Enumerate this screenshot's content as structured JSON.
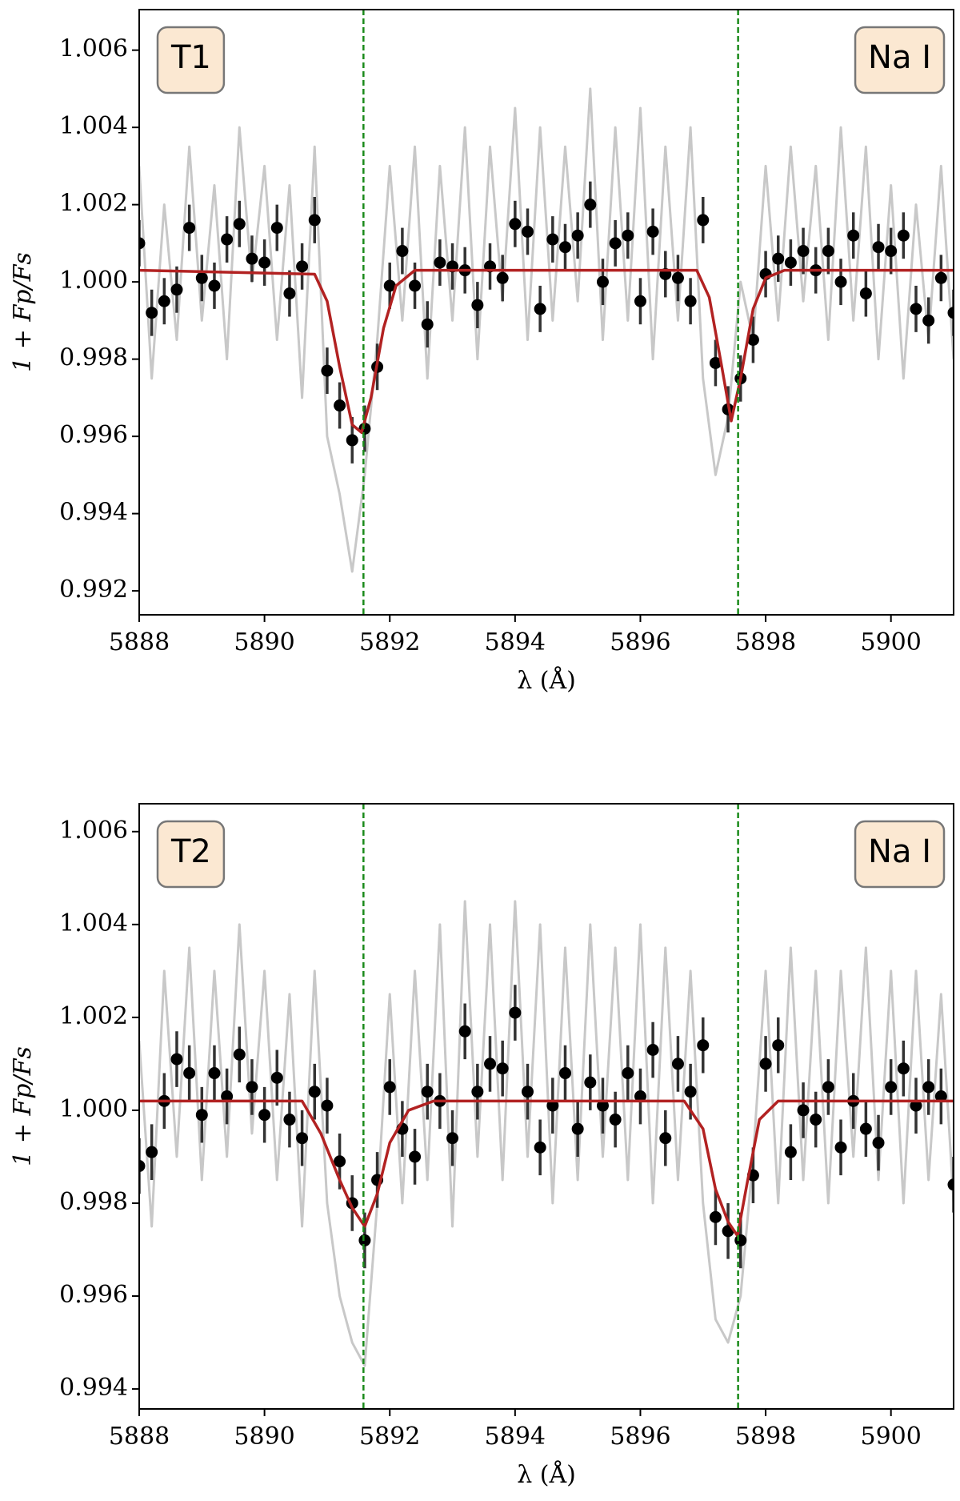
{
  "chart_data": [
    {
      "type": "scatter",
      "annotations": [
        "T1",
        "Na I"
      ],
      "xlabel": "λ (Å)",
      "ylabel": "1 + Fp/Fs",
      "xlim": [
        5888,
        5901
      ],
      "xticks": [
        5888,
        5890,
        5892,
        5894,
        5896,
        5898,
        5900
      ],
      "ylim": [
        0.99138,
        1.00705
      ],
      "yticks": [
        0.992,
        0.994,
        0.996,
        0.998,
        {
          "value": 1,
          "label": "1.000"
        },
        1.002,
        1.004,
        1.006
      ],
      "vlines": [
        5891.58,
        5897.56
      ],
      "vline_color": "#1a8a1a",
      "x": [
        5888,
        5888.2,
        5888.4,
        5888.6,
        5888.8,
        5889,
        5889.2,
        5889.4,
        5889.6,
        5889.8,
        5890,
        5890.2,
        5890.4,
        5890.6,
        5890.8,
        5891,
        5891.2,
        5891.4,
        5891.6,
        5891.8,
        5892,
        5892.2,
        5892.4,
        5892.6,
        5892.8,
        5893,
        5893.2,
        5893.4,
        5893.6,
        5893.8,
        5894,
        5894.2,
        5894.4,
        5894.6,
        5894.8,
        5895,
        5895.2,
        5895.4,
        5895.6,
        5895.8,
        5896,
        5896.2,
        5896.4,
        5896.6,
        5896.8,
        5897,
        5897.2,
        5897.4,
        5897.6,
        5897.8,
        5898,
        5898.2,
        5898.4,
        5898.6,
        5898.8,
        5899,
        5899.2,
        5899.4,
        5899.6,
        5899.8,
        5900,
        5900.2,
        5900.4,
        5900.6,
        5900.8,
        5901
      ],
      "series": [
        {
          "kind": "line",
          "color": "#c8c8c8",
          "values": [
            1.003,
            0.9975,
            1.002,
            0.9985,
            1.0035,
            0.999,
            1.0025,
            0.998,
            1.004,
            1.0,
            1.003,
            0.9985,
            1.0025,
            0.997,
            1.0035,
            0.996,
            0.9945,
            0.9925,
            0.995,
            0.9985,
            1.003,
            0.999,
            1.0035,
            0.9975,
            1.003,
            0.999,
            1.004,
            0.998,
            1.0035,
            0.9995,
            1.0045,
            0.9985,
            1.004,
            0.999,
            1.0035,
            0.9995,
            1.005,
            0.9985,
            1.004,
            0.999,
            1.0045,
            0.998,
            1.0035,
            0.999,
            1.004,
            0.9975,
            0.995,
            0.9965,
            1.0,
            0.9985,
            1.003,
            0.999,
            1.0035,
            0.9995,
            1.003,
            0.9985,
            1.004,
            0.999,
            1.0035,
            0.998,
            1.0025,
            0.9975,
            1.002,
            0.9985,
            1.003,
            0.998
          ]
        },
        {
          "kind": "errorbar",
          "color": "#000000",
          "error_color": "#333333",
          "error": 0.0006,
          "values": [
            1.001,
            0.9992,
            0.9995,
            0.9998,
            1.0014,
            1.0001,
            0.9999,
            1.0011,
            1.0015,
            1.0006,
            1.0005,
            1.0014,
            0.9997,
            1.0004,
            1.0016,
            0.9977,
            0.9968,
            0.9959,
            0.9962,
            0.9978,
            0.9999,
            1.0008,
            0.9999,
            0.9989,
            1.0005,
            1.0004,
            1.0003,
            0.9994,
            1.0004,
            1.0001,
            1.0015,
            1.0013,
            0.9993,
            1.0011,
            1.0009,
            1.0012,
            1.002,
            1.0,
            1.001,
            1.0012,
            0.9995,
            1.0013,
            1.0002,
            1.0001,
            0.9995,
            1.0016,
            0.9979,
            0.9967,
            0.9975,
            0.9985,
            1.0002,
            1.0006,
            1.0005,
            1.0008,
            1.0003,
            1.0008,
            1.0,
            1.0012,
            0.9997,
            1.0009,
            1.0008,
            1.0012,
            0.9993,
            0.999,
            1.0001,
            0.9992
          ]
        },
        {
          "kind": "line",
          "color": "#b22222",
          "x": [
            5888,
            5890.8,
            5891,
            5891.2,
            5891.4,
            5891.55,
            5891.7,
            5891.9,
            5892.1,
            5892.4,
            5896.9,
            5897.1,
            5897.3,
            5897.45,
            5897.6,
            5897.8,
            5898,
            5898.3,
            5901
          ],
          "values": [
            1.0003,
            1.0002,
            0.9995,
            0.9978,
            0.9963,
            0.9961,
            0.997,
            0.9988,
            0.9999,
            1.0003,
            1.0003,
            0.9996,
            0.9978,
            0.9964,
            0.9975,
            0.9993,
            1.0001,
            1.0003,
            1.0003
          ]
        }
      ]
    },
    {
      "type": "scatter",
      "annotations": [
        "T2",
        "Na I"
      ],
      "xlabel": "λ (Å)",
      "ylabel": "1 + Fp/Fs",
      "xlim": [
        5888,
        5901
      ],
      "xticks": [
        5888,
        5890,
        5892,
        5894,
        5896,
        5898,
        5900
      ],
      "ylim": [
        0.99357,
        1.0066
      ],
      "yticks": [
        0.994,
        0.996,
        0.998,
        {
          "value": 1,
          "label": "1.000"
        },
        1.002,
        1.004,
        1.006
      ],
      "vlines": [
        5891.58,
        5897.56
      ],
      "vline_color": "#1a8a1a",
      "x": [
        5888,
        5888.2,
        5888.4,
        5888.6,
        5888.8,
        5889,
        5889.2,
        5889.4,
        5889.6,
        5889.8,
        5890,
        5890.2,
        5890.4,
        5890.6,
        5890.8,
        5891,
        5891.2,
        5891.4,
        5891.6,
        5891.8,
        5892,
        5892.2,
        5892.4,
        5892.6,
        5892.8,
        5893,
        5893.2,
        5893.4,
        5893.6,
        5893.8,
        5894,
        5894.2,
        5894.4,
        5894.6,
        5894.8,
        5895,
        5895.2,
        5895.4,
        5895.6,
        5895.8,
        5896,
        5896.2,
        5896.4,
        5896.6,
        5896.8,
        5897,
        5897.2,
        5897.4,
        5897.6,
        5897.8,
        5898,
        5898.2,
        5898.4,
        5898.6,
        5898.8,
        5899,
        5899.2,
        5899.4,
        5899.6,
        5899.8,
        5900,
        5900.2,
        5900.4,
        5900.6,
        5900.8,
        5901
      ],
      "series": [
        {
          "kind": "line",
          "color": "#c8c8c8",
          "values": [
            1.0015,
            0.9975,
            1.003,
            0.999,
            1.0035,
            0.9985,
            1.003,
            0.999,
            1.004,
            0.9995,
            1.003,
            0.9985,
            1.0025,
            0.9975,
            1.003,
            0.998,
            0.996,
            0.995,
            0.9945,
            0.998,
            1.0025,
            0.998,
            1.003,
            0.9985,
            1.004,
            0.9975,
            1.0045,
            0.999,
            1.004,
            0.9985,
            1.0045,
            0.999,
            1.004,
            0.998,
            1.0035,
            0.9985,
            1.004,
            0.999,
            1.0035,
            0.9985,
            1.004,
            0.998,
            1.0035,
            0.9985,
            1.003,
            0.998,
            0.9955,
            0.995,
            0.996,
            0.999,
            1.003,
            0.998,
            1.0035,
            0.9985,
            1.003,
            0.998,
            1.003,
            0.999,
            1.0035,
            0.9985,
            1.003,
            0.998,
            1.003,
            0.9985,
            1.0025,
            0.998
          ]
        },
        {
          "kind": "errorbar",
          "color": "#000000",
          "error_color": "#333333",
          "error": 0.0006,
          "values": [
            0.9988,
            0.9991,
            1.0002,
            1.0011,
            1.0008,
            0.9999,
            1.0008,
            1.0003,
            1.0012,
            1.0005,
            0.9999,
            1.0007,
            0.9998,
            0.9994,
            1.0004,
            1.0001,
            0.9989,
            0.998,
            0.9972,
            0.9985,
            1.0005,
            0.9996,
            0.999,
            1.0004,
            1.0002,
            0.9994,
            1.0017,
            1.0004,
            1.001,
            1.0009,
            1.0021,
            1.0004,
            0.9992,
            1.0001,
            1.0008,
            0.9996,
            1.0006,
            1.0001,
            0.9998,
            1.0008,
            1.0003,
            1.0013,
            0.9994,
            1.001,
            1.0004,
            1.0014,
            0.9977,
            0.9974,
            0.9972,
            0.9986,
            1.001,
            1.0014,
            0.9991,
            1.0,
            0.9998,
            1.0005,
            0.9992,
            1.0002,
            0.9996,
            0.9993,
            1.0005,
            1.0009,
            1.0001,
            1.0005,
            1.0003,
            0.9984
          ]
        },
        {
          "kind": "line",
          "color": "#b22222",
          "x": [
            5888,
            5890.6,
            5890.9,
            5891.2,
            5891.4,
            5891.6,
            5891.8,
            5892,
            5892.3,
            5892.7,
            5896.7,
            5897,
            5897.2,
            5897.4,
            5897.55,
            5897.7,
            5897.9,
            5898.2,
            5901
          ],
          "values": [
            1.0002,
            1.0002,
            0.9995,
            0.9985,
            0.9979,
            0.9975,
            0.9982,
            0.9993,
            1.0,
            1.0002,
            1.0002,
            0.9996,
            0.9983,
            0.9976,
            0.9973,
            0.9984,
            0.9998,
            1.0002,
            1.0002
          ]
        }
      ]
    }
  ]
}
